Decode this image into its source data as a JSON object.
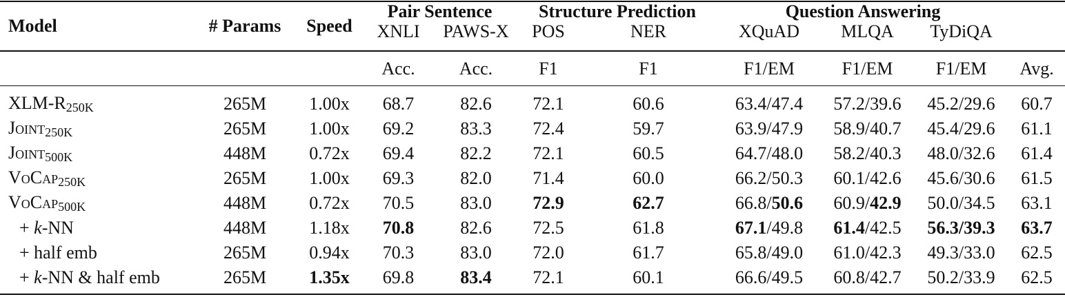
{
  "table": {
    "header": {
      "model": "Model",
      "params": "# Params",
      "speed": "Speed",
      "groups": [
        {
          "label": "Pair Sentence",
          "columns": [
            "XNLI",
            "PAWS-X"
          ]
        },
        {
          "label": "Structure Prediction",
          "columns": [
            "POS",
            "NER"
          ]
        },
        {
          "label": "Question Answering",
          "columns": [
            "XQuAD",
            "MLQA",
            "TyDiQA"
          ]
        }
      ],
      "units": [
        "Acc.",
        "Acc.",
        "F1",
        "F1",
        "F1/EM",
        "F1/EM",
        "F1/EM",
        "Avg."
      ]
    },
    "rows": [
      {
        "model": [
          {
            "text": "XLM-R"
          },
          {
            "text": "250K",
            "sub": true
          }
        ],
        "params": "265M",
        "speed": "1.00x",
        "cells": [
          "68.7",
          "82.6",
          "72.1",
          "60.6",
          "63.4/47.4",
          "57.2/39.6",
          "45.2/29.6",
          "60.7"
        ]
      },
      {
        "model": [
          {
            "text": "Joint",
            "smallcaps": true
          },
          {
            "text": "250K",
            "sub": true
          }
        ],
        "params": "265M",
        "speed": "1.00x",
        "cells": [
          "69.2",
          "83.3",
          "72.4",
          "59.7",
          "63.9/47.9",
          "58.9/40.7",
          "45.4/29.6",
          "61.1"
        ]
      },
      {
        "model": [
          {
            "text": "Joint",
            "smallcaps": true
          },
          {
            "text": "500K",
            "sub": true
          }
        ],
        "params": "448M",
        "speed": "0.72x",
        "cells": [
          "69.4",
          "82.2",
          "72.1",
          "60.5",
          "64.7/48.0",
          "58.2/40.3",
          "48.0/32.6",
          "61.4"
        ]
      },
      {
        "model": [
          {
            "text": "VoCap",
            "smallcaps": true
          },
          {
            "text": "250K",
            "sub": true
          }
        ],
        "params": "265M",
        "speed": "1.00x",
        "cells": [
          "69.3",
          "82.0",
          "71.4",
          "60.0",
          "66.2/50.3",
          "60.1/42.6",
          "45.6/30.6",
          "61.5"
        ]
      },
      {
        "model": [
          {
            "text": "VoCap",
            "smallcaps": true
          },
          {
            "text": "500K",
            "sub": true
          }
        ],
        "params": "448M",
        "speed": "0.72x",
        "cells": [
          "70.5",
          "83.0",
          [
            {
              "text": "72.9",
              "bold": true
            }
          ],
          [
            {
              "text": "62.7",
              "bold": true
            }
          ],
          [
            {
              "text": "66.8/"
            },
            {
              "text": "50.6",
              "bold": true
            }
          ],
          [
            {
              "text": "60.9/"
            },
            {
              "text": "42.9",
              "bold": true
            }
          ],
          "50.0/34.5",
          "63.1"
        ]
      },
      {
        "model": [
          {
            "text": "+ "
          },
          {
            "text": "k",
            "italic": true
          },
          {
            "text": "-NN"
          }
        ],
        "params": "448M",
        "speed": "1.18x",
        "cells": [
          [
            {
              "text": "70.8",
              "bold": true
            }
          ],
          "82.6",
          "72.5",
          "61.8",
          [
            {
              "text": "67.1",
              "bold": true
            },
            {
              "text": "/49.8"
            }
          ],
          [
            {
              "text": "61.4",
              "bold": true
            },
            {
              "text": "/42.5"
            }
          ],
          [
            {
              "text": "56.3/39.3",
              "bold": true
            }
          ],
          [
            {
              "text": "63.7",
              "bold": true
            }
          ]
        ]
      },
      {
        "model": [
          {
            "text": "+ half emb"
          }
        ],
        "params": "265M",
        "speed": "0.94x",
        "cells": [
          "70.3",
          "83.0",
          "72.0",
          "61.7",
          "65.8/49.0",
          "61.0/42.3",
          "49.3/33.0",
          "62.5"
        ]
      },
      {
        "model": [
          {
            "text": "+ "
          },
          {
            "text": "k",
            "italic": true
          },
          {
            "text": "-NN & half emb"
          }
        ],
        "params": "265M",
        "speed": [
          {
            "text": "1.35x",
            "bold": true
          }
        ],
        "cells": [
          "69.8",
          [
            {
              "text": "83.4",
              "bold": true
            }
          ],
          "72.1",
          "60.1",
          "66.6/49.5",
          "60.8/42.7",
          "50.2/33.9",
          "62.5"
        ]
      }
    ]
  }
}
